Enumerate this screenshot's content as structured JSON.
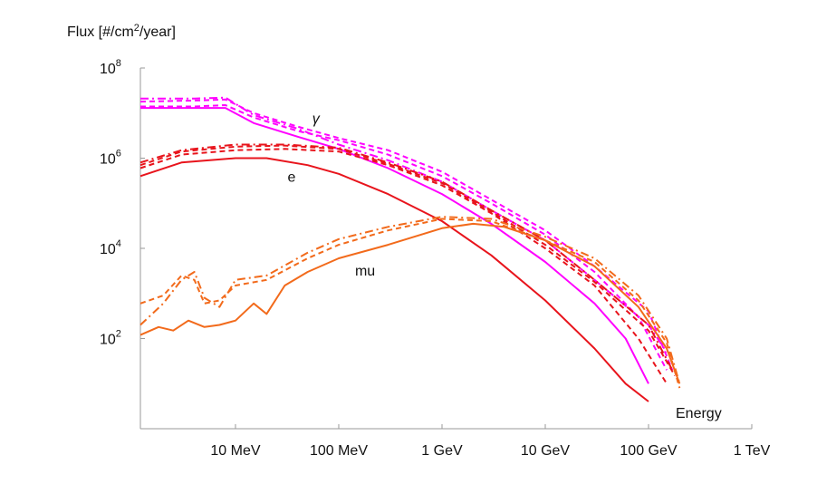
{
  "chart_data": {
    "type": "line",
    "title": "",
    "ylabel": "Flux [#/cm²/year]",
    "xlabel": "Energy",
    "x_scale": "log",
    "y_scale": "log",
    "xlim_MeV": [
      1.2,
      1000000
    ],
    "ylim": [
      1,
      100000000
    ],
    "grid": false,
    "x_ticks": [
      {
        "value": 10,
        "label": "10 MeV"
      },
      {
        "value": 100,
        "label": "100 MeV"
      },
      {
        "value": 1000,
        "label": "1 GeV"
      },
      {
        "value": 10000,
        "label": "10 GeV"
      },
      {
        "value": 100000,
        "label": "100 GeV"
      },
      {
        "value": 1000000,
        "label": "1 TeV"
      }
    ],
    "y_ticks": [
      {
        "value": 100,
        "base": "10",
        "exp": "2"
      },
      {
        "value": 10000,
        "base": "10",
        "exp": "4"
      },
      {
        "value": 1000000,
        "base": "10",
        "exp": "6"
      },
      {
        "value": 100000000,
        "base": "10",
        "exp": "8"
      }
    ],
    "annotations": [
      {
        "text": "γ",
        "x": 60,
        "y": 6000000
      },
      {
        "text": "e",
        "x": 35,
        "y": 300000
      },
      {
        "text": "mu",
        "x": 180,
        "y": 2500
      }
    ],
    "colors": {
      "gamma": "#ff00ff",
      "e": "#e8141c",
      "mu": "#f26a1b"
    },
    "series": [
      {
        "group": "gamma",
        "dash": "solid",
        "x": [
          1.2,
          4,
          8,
          15,
          40,
          100,
          300,
          1000,
          3000,
          10000,
          30000,
          60000,
          100000
        ],
        "y": [
          13000000,
          13000000,
          13000000,
          6000000,
          3000000,
          1600000,
          600000,
          160000,
          35000,
          5000,
          600,
          100,
          10
        ]
      },
      {
        "group": "gamma",
        "dash": "dash",
        "x": [
          1.2,
          4,
          8,
          15,
          40,
          100,
          300,
          1000,
          3000,
          10000,
          30000,
          80000,
          150000
        ],
        "y": [
          14000000,
          14000000,
          15000000,
          8000000,
          4000000,
          2500000,
          1200000,
          400000,
          100000,
          20000,
          3000,
          300,
          20
        ]
      },
      {
        "group": "gamma",
        "dash": "dashdot",
        "x": [
          1.2,
          4,
          8,
          15,
          40,
          100,
          300,
          1000,
          3000,
          10000,
          30000,
          100000,
          150000
        ],
        "y": [
          21000000,
          21000000,
          22000000,
          9000000,
          4500000,
          2000000,
          900000,
          300000,
          70000,
          15000,
          2000,
          200,
          50
        ]
      },
      {
        "group": "gamma",
        "dash": "dash",
        "x": [
          1.2,
          4,
          8,
          15,
          40,
          100,
          300,
          1000,
          3000,
          10000,
          30000,
          100000,
          170000
        ],
        "y": [
          18000000,
          19000000,
          20000000,
          10000000,
          5000000,
          2800000,
          1500000,
          500000,
          120000,
          25000,
          4000,
          400,
          20
        ]
      },
      {
        "group": "e",
        "dash": "solid",
        "x": [
          1.2,
          3,
          10,
          20,
          50,
          100,
          300,
          1000,
          3000,
          10000,
          30000,
          60000,
          100000
        ],
        "y": [
          400000,
          800000,
          1000000,
          1000000,
          700000,
          450000,
          160000,
          40000,
          7000,
          700,
          60,
          10,
          4
        ]
      },
      {
        "group": "e",
        "dash": "dash",
        "x": [
          1.2,
          3,
          10,
          30,
          100,
          300,
          1000,
          3000,
          10000,
          30000,
          80000,
          150000
        ],
        "y": [
          600000,
          1200000,
          1500000,
          1600000,
          1400000,
          700000,
          250000,
          60000,
          10000,
          1500,
          100,
          10
        ]
      },
      {
        "group": "e",
        "dash": "dashdot",
        "x": [
          1.2,
          3,
          10,
          30,
          100,
          300,
          1000,
          3000,
          10000,
          30000,
          100000,
          170000
        ],
        "y": [
          800000,
          1500000,
          2000000,
          2000000,
          1700000,
          800000,
          300000,
          70000,
          15000,
          2000,
          200,
          20
        ]
      },
      {
        "group": "e",
        "dash": "dash",
        "x": [
          1.2,
          3,
          10,
          30,
          100,
          300,
          1000,
          3000,
          10000,
          30000,
          100000,
          180000
        ],
        "y": [
          700000,
          1400000,
          1800000,
          1900000,
          1600000,
          750000,
          280000,
          65000,
          12000,
          1800,
          150,
          15
        ]
      },
      {
        "group": "mu",
        "dash": "solid",
        "x": [
          1.2,
          1.8,
          2.5,
          3.5,
          5,
          7,
          10,
          15,
          20,
          30,
          50,
          100,
          300,
          1000,
          2000,
          4000,
          10000,
          30000,
          80000,
          150000,
          200000
        ],
        "y": [
          120,
          180,
          150,
          250,
          180,
          200,
          250,
          600,
          350,
          1500,
          3000,
          6000,
          12000,
          28000,
          35000,
          30000,
          15000,
          4000,
          500,
          60,
          10
        ]
      },
      {
        "group": "mu",
        "dash": "dash",
        "x": [
          1.2,
          2,
          3,
          4,
          5,
          7,
          10,
          20,
          50,
          100,
          300,
          1000,
          3000,
          10000,
          30000,
          80000,
          150000,
          200000
        ],
        "y": [
          600,
          900,
          2500,
          2000,
          600,
          700,
          1500,
          2000,
          6000,
          12000,
          25000,
          45000,
          40000,
          15000,
          5000,
          700,
          80,
          8
        ]
      },
      {
        "group": "mu",
        "dash": "dashdot",
        "x": [
          1.2,
          2,
          3,
          4,
          5,
          7,
          10,
          20,
          50,
          100,
          300,
          1000,
          3000,
          10000,
          30000,
          80000,
          150000,
          200000
        ],
        "y": [
          200,
          600,
          2000,
          3000,
          800,
          500,
          2000,
          2500,
          8000,
          16000,
          30000,
          50000,
          45000,
          18000,
          6000,
          900,
          100,
          10
        ]
      }
    ]
  }
}
